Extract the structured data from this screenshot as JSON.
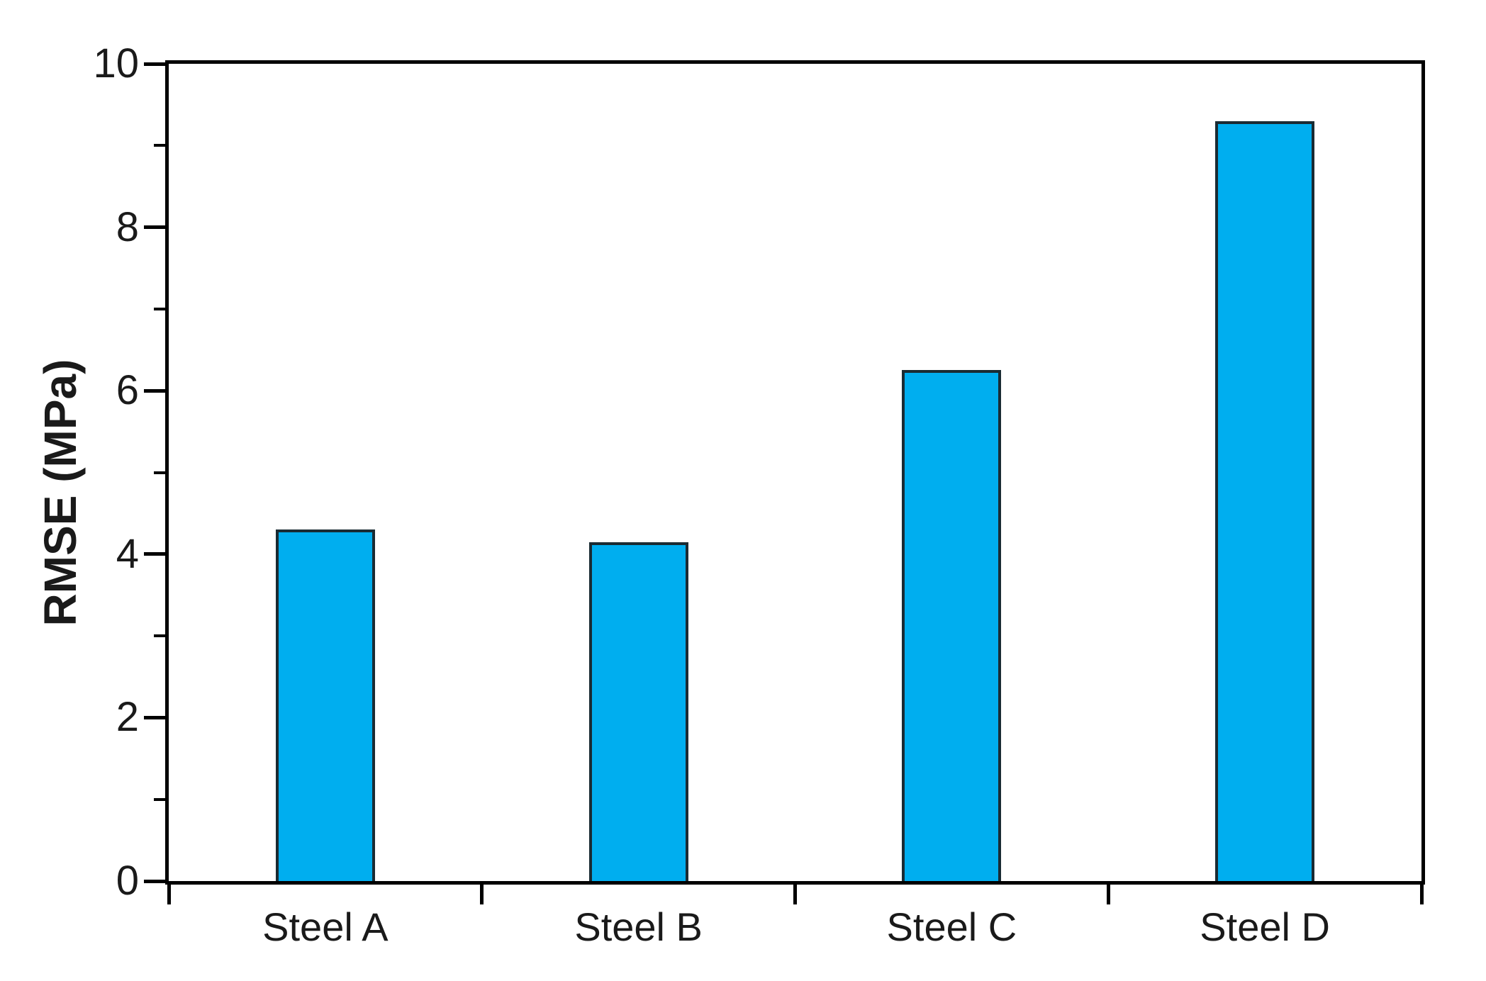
{
  "chart_data": {
    "type": "bar",
    "title": "",
    "xlabel": "",
    "ylabel": "RMSE (MPa)",
    "categories": [
      "Steel A",
      "Steel B",
      "Steel C",
      "Steel D"
    ],
    "values": [
      4.3,
      4.15,
      6.25,
      9.3
    ],
    "ylim": [
      0,
      10
    ],
    "y_major_ticks": [
      0,
      2,
      4,
      6,
      8,
      10
    ],
    "y_minor_ticks": [
      1,
      3,
      5,
      7,
      9
    ],
    "grid": false,
    "legend": false,
    "colors": {
      "bar_fill": "#00AEEF",
      "bar_border": "#1A2B33",
      "axis": "#000000",
      "text": "#1A1A1A",
      "background": "#FFFFFF"
    }
  }
}
